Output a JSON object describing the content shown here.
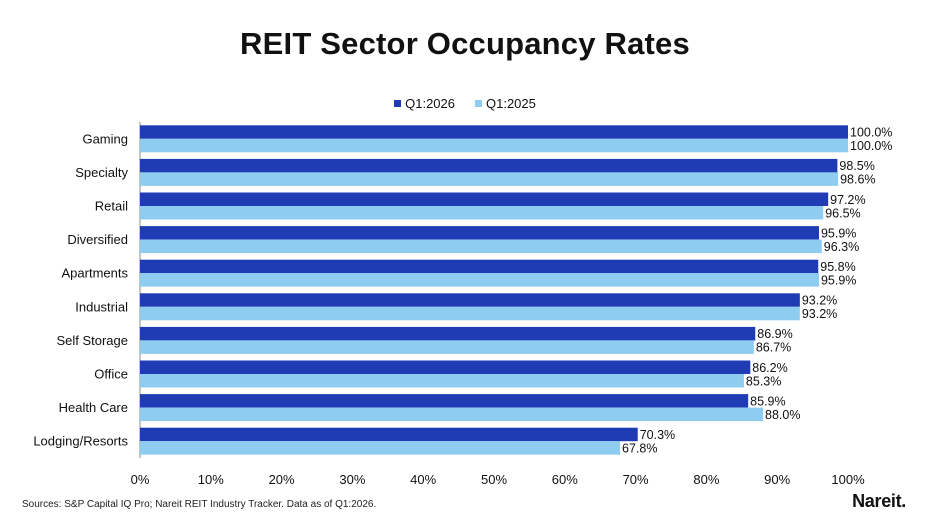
{
  "chart_data": {
    "type": "bar",
    "orientation": "horizontal",
    "title": "REIT Sector Occupancy Rates",
    "categories": [
      "Gaming",
      "Specialty",
      "Retail",
      "Diversified",
      "Apartments",
      "Industrial",
      "Self Storage",
      "Office",
      "Health Care",
      "Lodging/Resorts"
    ],
    "series": [
      {
        "name": "Q1:2026",
        "color": "#1f3cb5",
        "values": [
          100.0,
          98.5,
          97.2,
          95.9,
          95.8,
          93.2,
          86.9,
          86.2,
          85.9,
          70.3
        ]
      },
      {
        "name": "Q1:2025",
        "color": "#8fcdf0",
        "values": [
          100.0,
          98.6,
          96.5,
          96.3,
          95.9,
          93.2,
          86.7,
          85.3,
          88.0,
          67.8
        ]
      }
    ],
    "data_labels": [
      [
        "100.0%",
        "98.5%",
        "97.2%",
        "95.9%",
        "95.8%",
        "93.2%",
        "86.9%",
        "86.2%",
        "85.9%",
        "70.3%"
      ],
      [
        "100.0%",
        "98.6%",
        "96.5%",
        "96.3%",
        "95.9%",
        "93.2%",
        "86.7%",
        "85.3%",
        "88.0%",
        "67.8%"
      ]
    ],
    "xlim": [
      0,
      100
    ],
    "xticks": [
      "0%",
      "10%",
      "20%",
      "30%",
      "40%",
      "50%",
      "60%",
      "70%",
      "80%",
      "90%",
      "100%"
    ],
    "xlabel": "",
    "ylabel": "",
    "grid": false,
    "legend_position": "top"
  },
  "footer": {
    "source": "Sources: S&P Capital IQ Pro; Nareit REIT Industry Tracker. Data as of Q1:2026.",
    "logo": "Nareit."
  }
}
